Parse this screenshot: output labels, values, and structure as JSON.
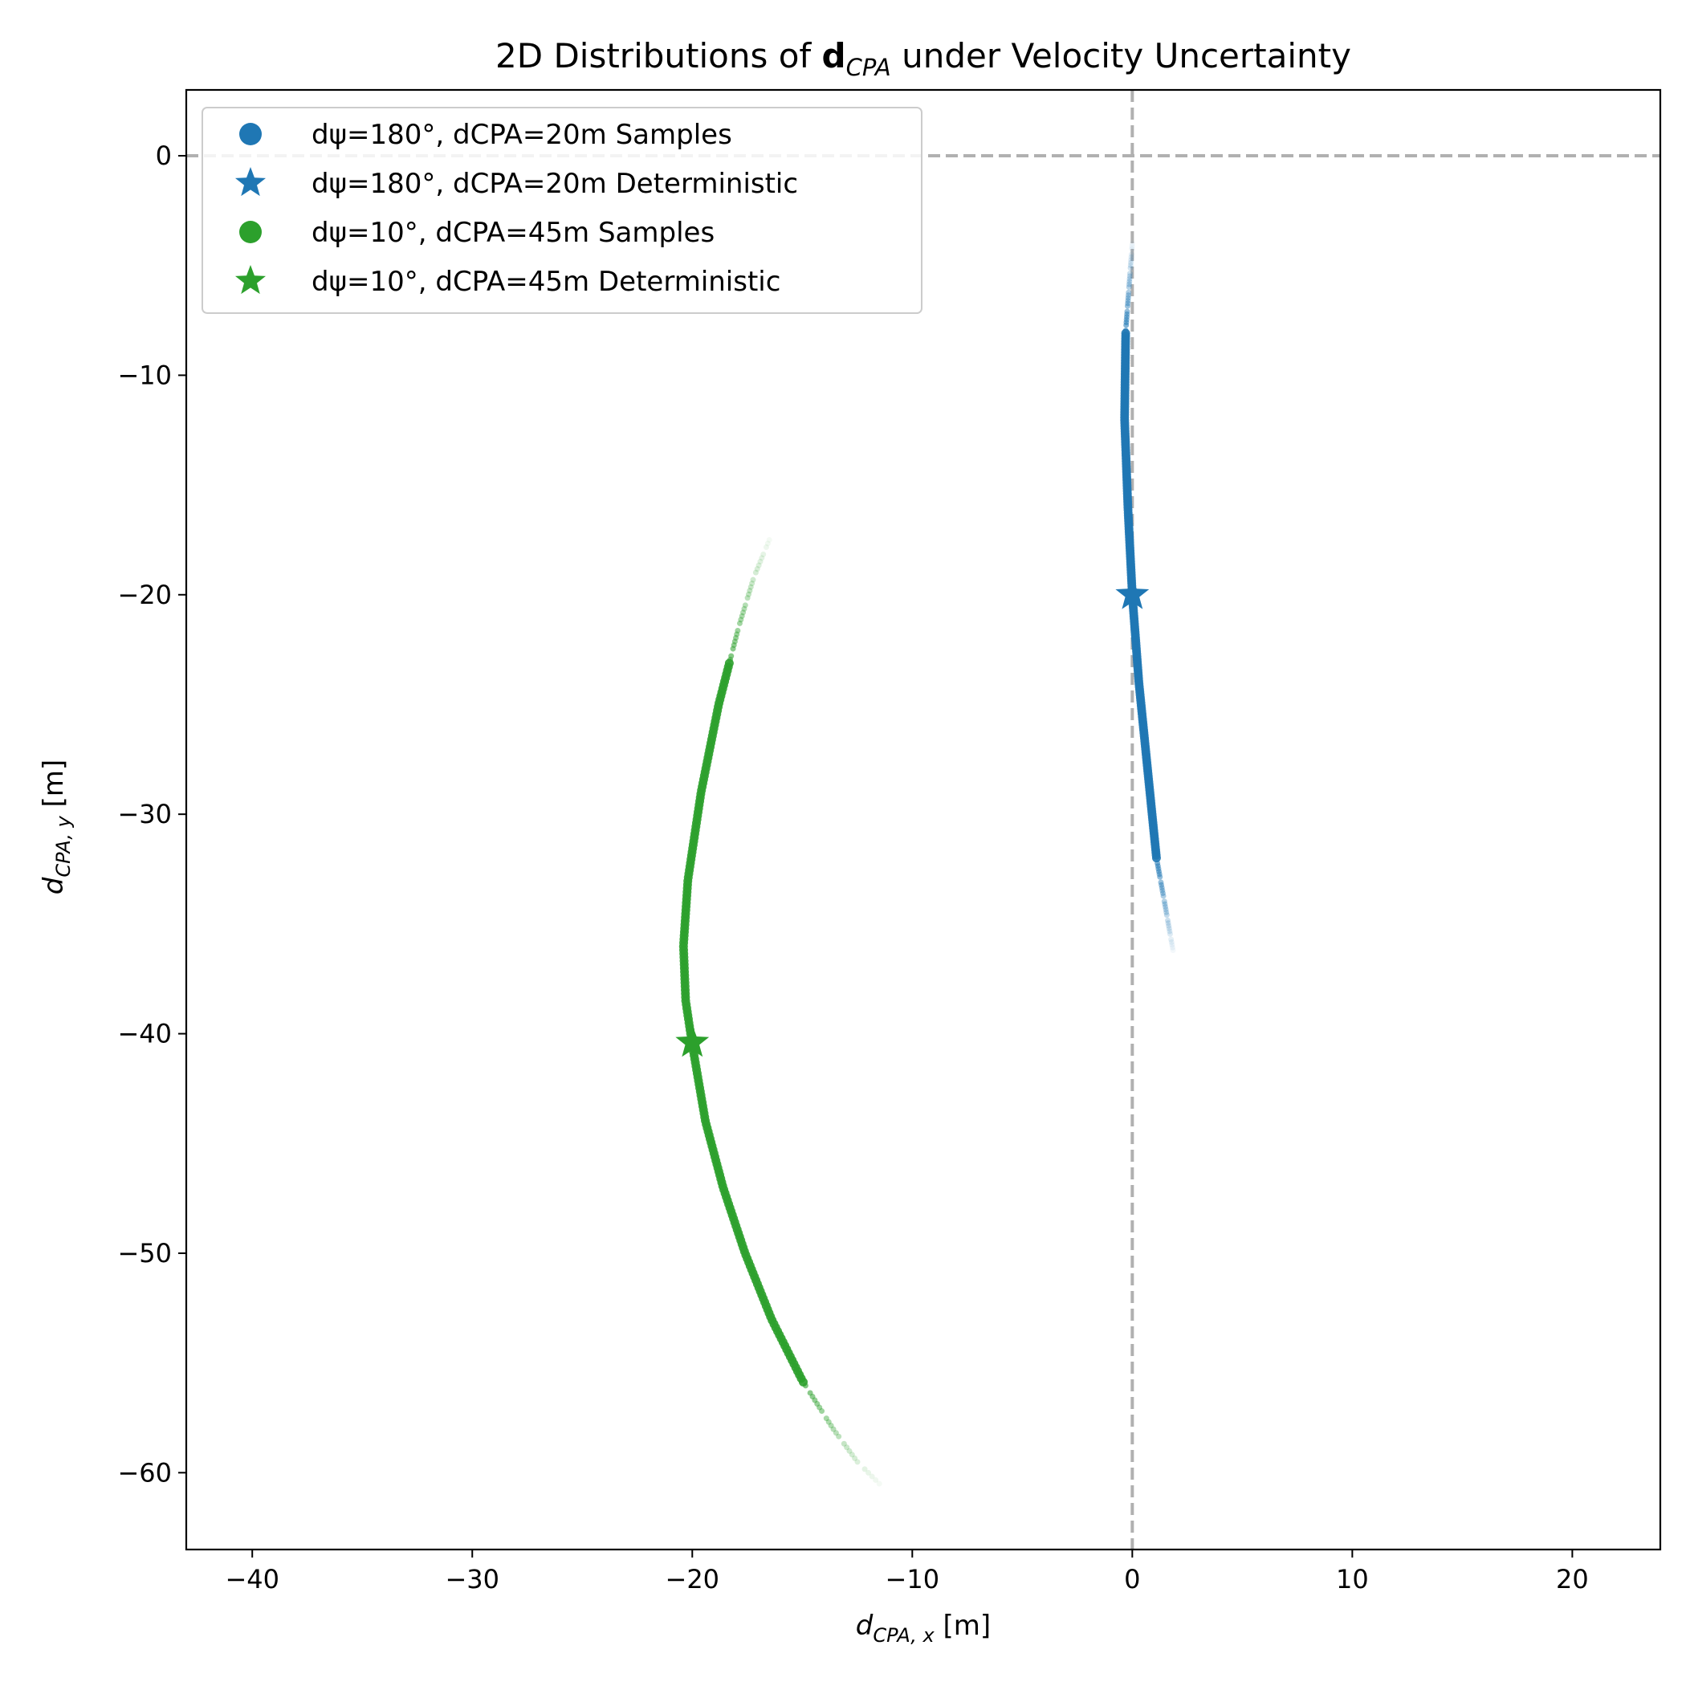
{
  "chart_data": {
    "type": "scatter",
    "title": {
      "prefix": "2D Distributions of ",
      "bold": "d",
      "sub": "CPA",
      "suffix": "  under Velocity Uncertainty"
    },
    "xlabel": {
      "main": "d",
      "sub": "CPA, x",
      "unit": " [m]"
    },
    "ylabel": {
      "main": "d",
      "sub": "CPA, y",
      "unit": " [m]"
    },
    "xlim": [
      -43,
      24
    ],
    "ylim": [
      -63.5,
      3
    ],
    "xticks": [
      -40,
      -30,
      -20,
      -10,
      0,
      10,
      20
    ],
    "yticks": [
      0,
      -10,
      -20,
      -30,
      -40,
      -50,
      -60
    ],
    "xtick_labels": [
      "−40",
      "−30",
      "−20",
      "−10",
      "0",
      "10",
      "20"
    ],
    "ytick_labels": [
      "0",
      "−10",
      "−20",
      "−30",
      "−40",
      "−50",
      "−60"
    ],
    "reference_lines": [
      {
        "axis": "y",
        "value": 0,
        "style": "dashed",
        "color": "#b0b0b0"
      },
      {
        "axis": "x",
        "value": 0,
        "style": "dashed",
        "color": "#b0b0b0"
      }
    ],
    "grid": false,
    "legend_position": "top-left",
    "series": [
      {
        "name": "dψ=180°, dCPA=20m Samples",
        "marker": "circle",
        "color": "#1f77b4",
        "dense_range_y": [
          -8,
          -32
        ],
        "tail_range_y": [
          -4,
          -36.2
        ],
        "path": [
          {
            "x": 0.0,
            "y": -4.0
          },
          {
            "x": -0.3,
            "y": -8.0
          },
          {
            "x": -0.35,
            "y": -12.0
          },
          {
            "x": -0.2,
            "y": -16.0
          },
          {
            "x": 0.0,
            "y": -20.0
          },
          {
            "x": 0.3,
            "y": -24.0
          },
          {
            "x": 0.7,
            "y": -28.0
          },
          {
            "x": 1.1,
            "y": -32.0
          },
          {
            "x": 1.5,
            "y": -34.2
          },
          {
            "x": 1.85,
            "y": -36.2
          }
        ]
      },
      {
        "name": "dψ=180°, dCPA=20m Deterministic",
        "marker": "star",
        "color": "#1f77b4",
        "points": [
          {
            "x": 0.0,
            "y": -20.0
          }
        ]
      },
      {
        "name": "dψ=10°, dCPA=45m Samples",
        "marker": "circle",
        "color": "#2ca02c",
        "dense_range_y": [
          -23,
          -56
        ],
        "tail_range_y": [
          -17.5,
          -60.5
        ],
        "path": [
          {
            "x": -16.5,
            "y": -17.5
          },
          {
            "x": -17.2,
            "y": -19.2
          },
          {
            "x": -17.9,
            "y": -21.5
          },
          {
            "x": -18.8,
            "y": -25.0
          },
          {
            "x": -19.6,
            "y": -29.0
          },
          {
            "x": -20.2,
            "y": -33.0
          },
          {
            "x": -20.4,
            "y": -36.0
          },
          {
            "x": -20.3,
            "y": -38.5
          },
          {
            "x": -20.0,
            "y": -40.5
          },
          {
            "x": -19.4,
            "y": -44.0
          },
          {
            "x": -18.6,
            "y": -47.0
          },
          {
            "x": -17.6,
            "y": -50.0
          },
          {
            "x": -16.4,
            "y": -53.0
          },
          {
            "x": -15.0,
            "y": -55.8
          },
          {
            "x": -13.6,
            "y": -58.0
          },
          {
            "x": -12.5,
            "y": -59.5
          },
          {
            "x": -11.5,
            "y": -60.5
          }
        ]
      },
      {
        "name": "dψ=10°, dCPA=45m Deterministic",
        "marker": "star",
        "color": "#2ca02c",
        "points": [
          {
            "x": -20.0,
            "y": -40.4
          }
        ]
      }
    ]
  }
}
